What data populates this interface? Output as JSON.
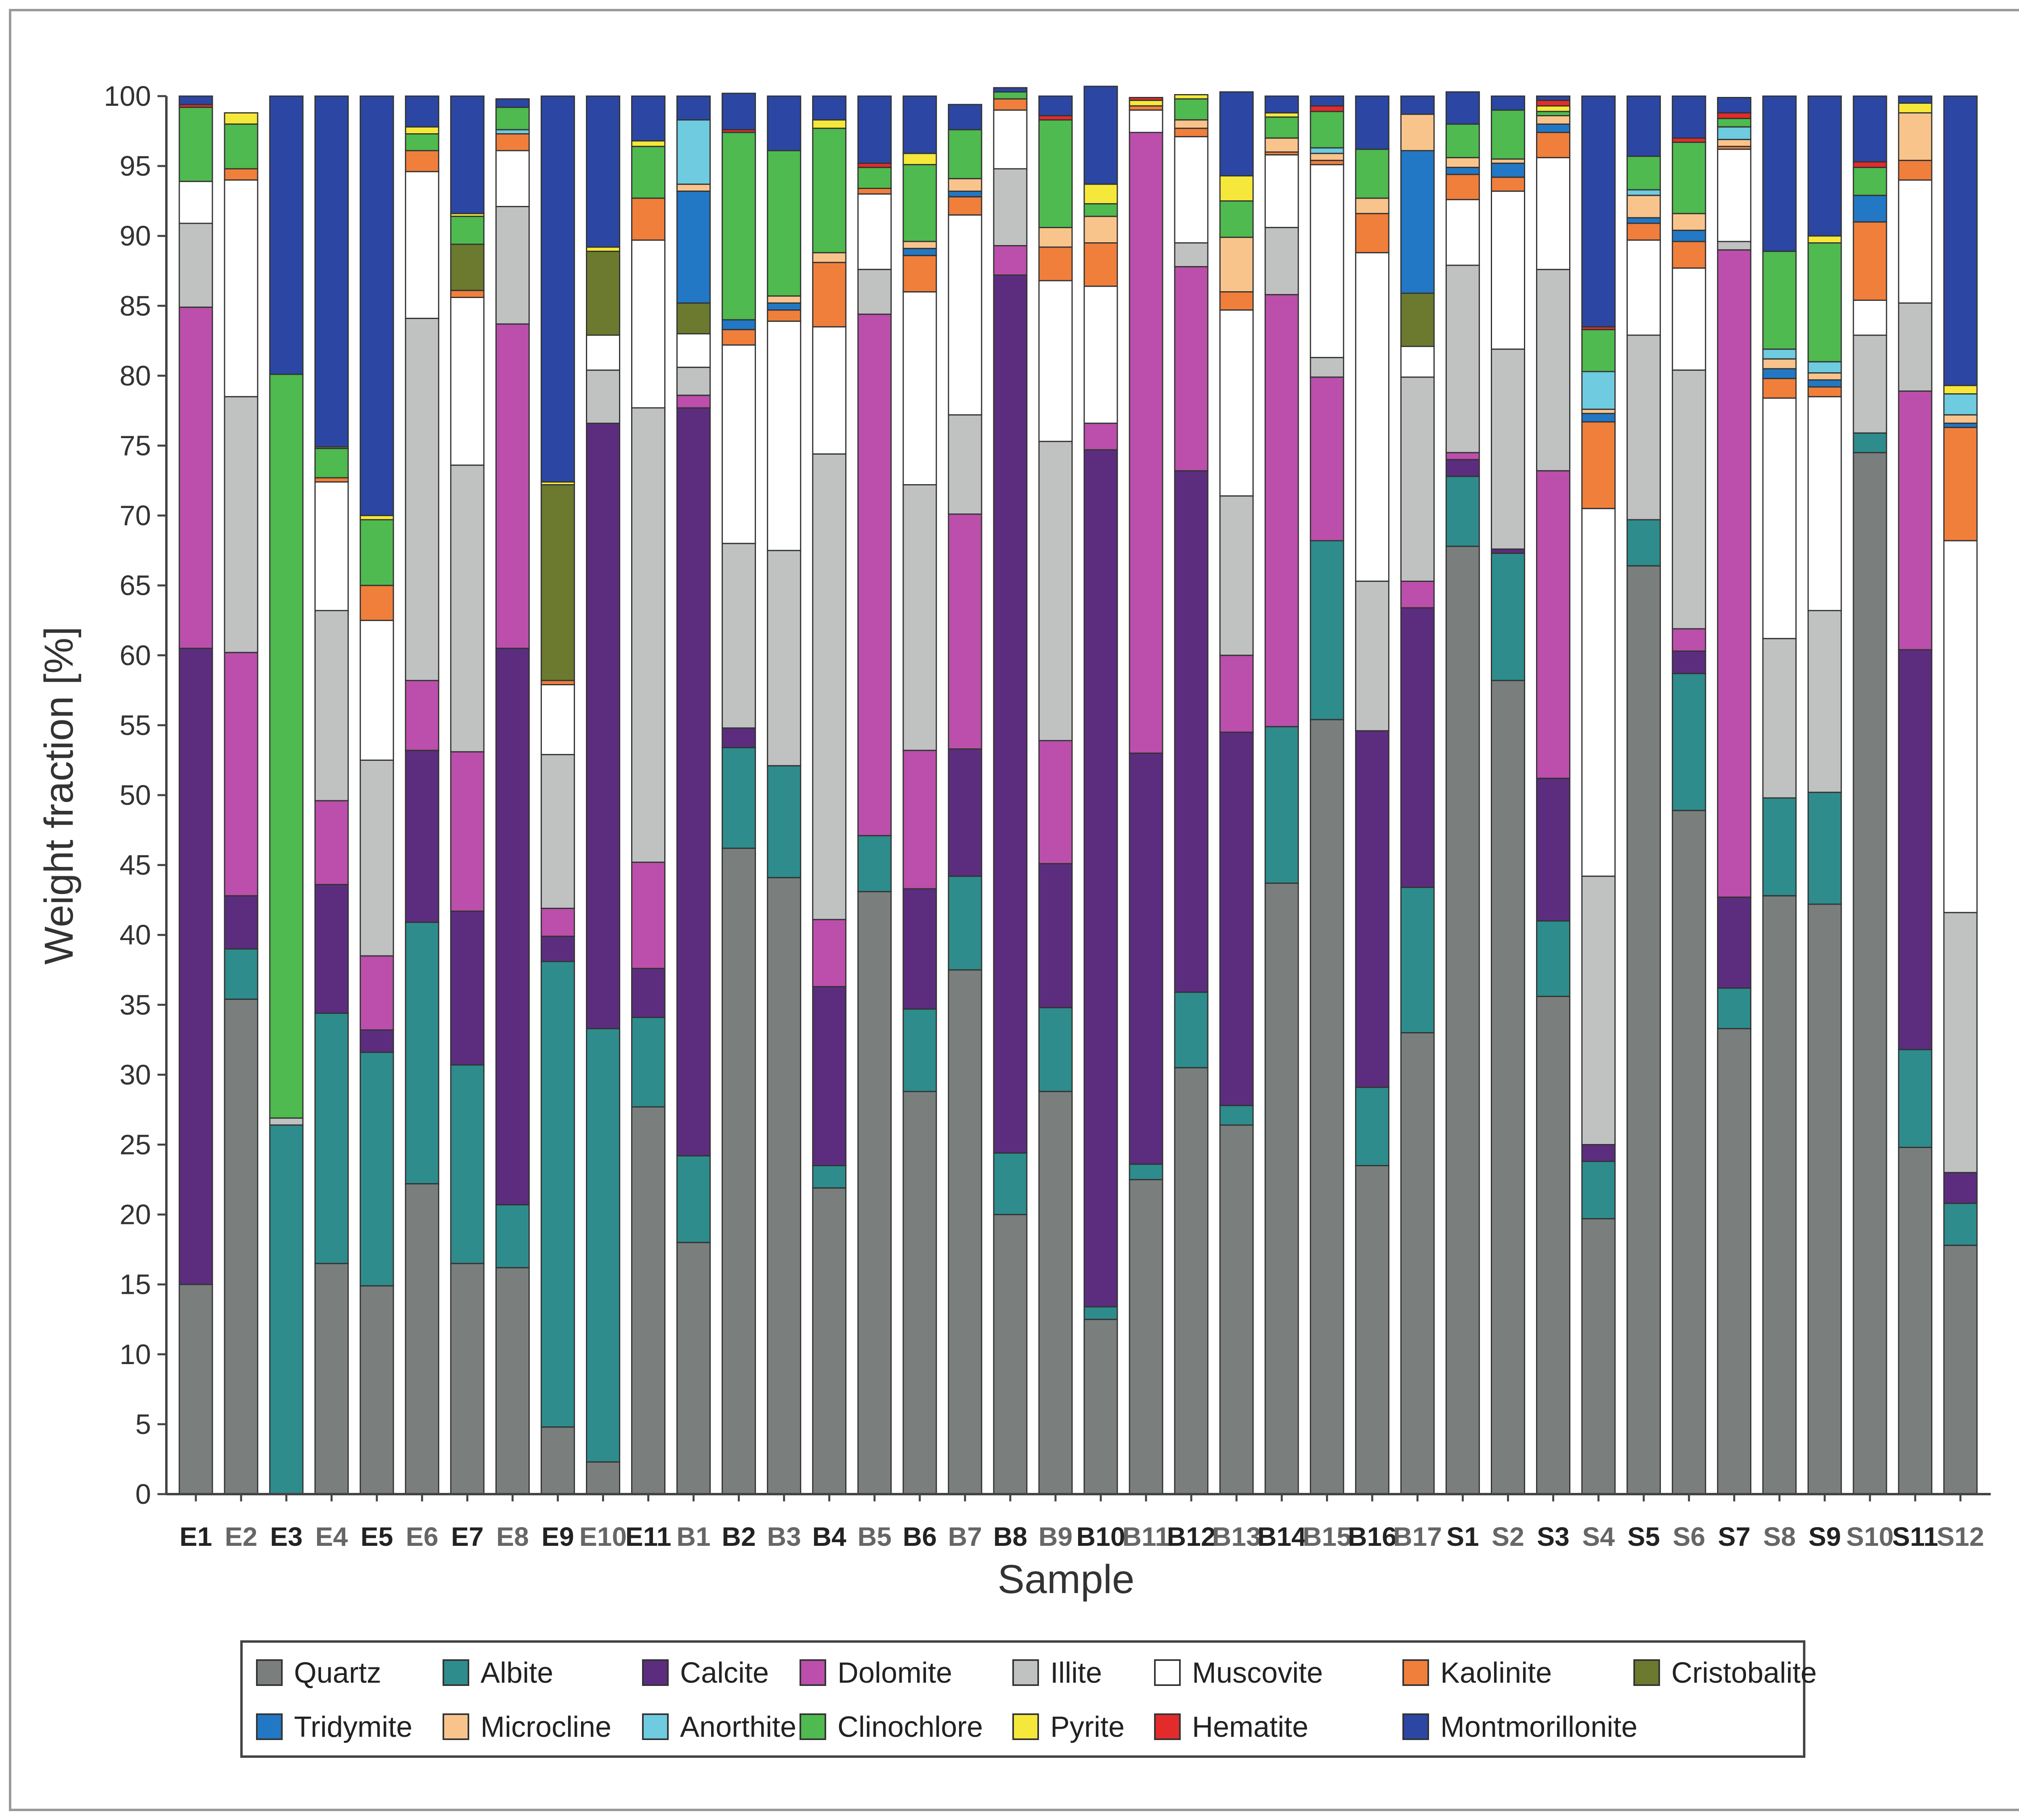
{
  "chart_data": {
    "type": "bar",
    "stacked": true,
    "title": "",
    "xlabel": "Sample",
    "ylabel": "Weight fraction [%]",
    "ylim": [
      0,
      100
    ],
    "yticks": [
      0,
      5,
      10,
      15,
      20,
      25,
      30,
      35,
      40,
      45,
      50,
      55,
      60,
      65,
      70,
      75,
      80,
      85,
      90,
      95,
      100
    ],
    "grid": false,
    "legend_position": "bottom",
    "categories": [
      "E1",
      "E2",
      "E3",
      "E4",
      "E5",
      "E6",
      "E7",
      "E8",
      "E9",
      "E10",
      "E11",
      "B1",
      "B2",
      "B3",
      "B4",
      "B5",
      "B6",
      "B7",
      "B8",
      "B9",
      "B10",
      "B11",
      "B12",
      "B13",
      "B14",
      "B15",
      "B16",
      "B17",
      "S1",
      "S2",
      "S3",
      "S4",
      "S5",
      "S6",
      "S7",
      "S8",
      "S9",
      "S10",
      "S11",
      "S12"
    ],
    "label_colors": [
      "#222222",
      "#666666",
      "#222222",
      "#666666",
      "#222222",
      "#666666",
      "#222222",
      "#666666",
      "#222222",
      "#666666",
      "#222222",
      "#666666",
      "#222222",
      "#666666",
      "#222222",
      "#666666",
      "#222222",
      "#666666",
      "#222222",
      "#666666",
      "#222222",
      "#666666",
      "#222222",
      "#666666",
      "#222222",
      "#666666",
      "#222222",
      "#666666",
      "#222222",
      "#666666",
      "#222222",
      "#666666",
      "#222222",
      "#666666",
      "#222222",
      "#666666",
      "#222222",
      "#666666",
      "#222222",
      "#666666"
    ],
    "series": [
      {
        "name": "Quartz",
        "color": "#7a7f7e",
        "values": [
          15,
          35.4,
          0,
          16.5,
          14.9,
          22.2,
          16.5,
          16.2,
          4.8,
          2.3,
          27.7,
          18,
          46.2,
          44.1,
          21.9,
          43.1,
          28.8,
          37.5,
          20,
          28.8,
          12.5,
          22.5,
          30.5,
          26.4,
          43.7,
          55.4,
          23.5,
          33,
          67.8,
          58.2,
          35.6,
          19.7,
          66.4,
          48.9,
          33.3,
          42.8,
          42.2,
          74.5,
          24.8,
          17.8
        ]
      },
      {
        "name": "Albite",
        "color": "#2e8c8c",
        "values": [
          0,
          3.6,
          26.4,
          17.9,
          16.7,
          18.7,
          14.2,
          4.5,
          33.3,
          31,
          6.4,
          6.2,
          7.2,
          8,
          1.6,
          4,
          5.9,
          6.7,
          4.4,
          6,
          0.9,
          1.1,
          5.4,
          1.4,
          11.2,
          12.8,
          5.6,
          10.4,
          5,
          9.1,
          5.4,
          4.1,
          3.3,
          9.8,
          2.9,
          7,
          8,
          1.4,
          7,
          3
        ]
      },
      {
        "name": "Calcite",
        "color": "#5c2d7e",
        "values": [
          45.5,
          3.8,
          0,
          9.2,
          1.6,
          12.3,
          11,
          39.8,
          1.8,
          43.3,
          3.5,
          53.5,
          1.4,
          0,
          12.8,
          0,
          8.6,
          9.1,
          62.8,
          10.3,
          61.3,
          29.4,
          37.3,
          26.7,
          0,
          0,
          25.5,
          20,
          1.2,
          0.3,
          10.2,
          1.2,
          0,
          1.6,
          6.5,
          0,
          0,
          0,
          28.6,
          2.2
        ]
      },
      {
        "name": "Dolomite",
        "color": "#bb4fab",
        "values": [
          24.4,
          17.4,
          0,
          6,
          5.3,
          5,
          11.4,
          23.2,
          2,
          0,
          7.6,
          0.9,
          0,
          0,
          4.8,
          37.3,
          9.9,
          16.8,
          2.1,
          8.8,
          1.9,
          44.4,
          14.6,
          5.5,
          30.9,
          11.7,
          0,
          1.9,
          0.5,
          0,
          22,
          0,
          0,
          1.6,
          46.3,
          0,
          0,
          0,
          18.5,
          0
        ]
      },
      {
        "name": "Illite",
        "color": "#c0c2c2",
        "values": [
          6,
          18.3,
          0.5,
          13.6,
          14,
          25.9,
          20.5,
          8.4,
          11,
          3.8,
          32.5,
          2,
          13.2,
          15.4,
          33.3,
          3.2,
          19,
          7.1,
          5.5,
          21.4,
          0,
          0,
          1.7,
          11.4,
          4.8,
          1.4,
          10.7,
          14.6,
          13.4,
          14.3,
          14.4,
          19.2,
          13.2,
          18.5,
          0.6,
          11.4,
          13,
          7,
          6.3,
          18.6
        ]
      },
      {
        "name": "Muscovite",
        "color": "#ffffff",
        "values": [
          3,
          15.5,
          0,
          9.2,
          10,
          10.5,
          12,
          4,
          5,
          2.5,
          12,
          2.4,
          14.2,
          16.4,
          9.1,
          5.4,
          13.8,
          14.3,
          4.2,
          11.5,
          9.8,
          1.6,
          7.6,
          13.3,
          5.2,
          13.8,
          23.5,
          2.2,
          4.7,
          11.3,
          8,
          26.3,
          6.8,
          7.3,
          6.6,
          17.2,
          15.3,
          2.5,
          8.8,
          26.6
        ]
      },
      {
        "name": "Kaolinite",
        "color": "#f07f3c",
        "values": [
          0,
          0.8,
          0,
          0.3,
          2.5,
          1.5,
          0.5,
          1.2,
          0.3,
          0,
          3,
          0,
          1.1,
          0.8,
          4.6,
          0.4,
          2.6,
          1.3,
          0.8,
          2.4,
          3.1,
          0.3,
          0.6,
          1.3,
          0.2,
          0.3,
          2.8,
          0,
          1.8,
          1,
          1.8,
          6.2,
          1.2,
          1.9,
          0.2,
          1.4,
          0.7,
          5.6,
          1.4,
          8.1
        ]
      },
      {
        "name": "Cristobalite",
        "color": "#6b7a2e",
        "values": [
          0,
          0,
          0,
          0,
          0,
          0,
          3.3,
          0,
          14,
          6,
          0,
          2.2,
          0,
          0,
          0,
          0,
          0,
          0,
          0,
          0,
          0,
          0,
          0,
          0,
          0,
          0,
          0,
          3.8,
          0,
          0,
          0,
          0,
          0,
          0,
          0,
          0,
          0,
          0,
          0,
          0
        ]
      },
      {
        "name": "Tridymite",
        "color": "#2278c4",
        "values": [
          0,
          0,
          0,
          0,
          0,
          0,
          0,
          0,
          0,
          0,
          0,
          8,
          0.7,
          0.5,
          0,
          0,
          0.5,
          0.4,
          0,
          0,
          0,
          0,
          0,
          0,
          0,
          0,
          0,
          10.2,
          0.5,
          1,
          0.6,
          0.6,
          0.4,
          0.8,
          0,
          0.7,
          0.5,
          1.9,
          0,
          0.3
        ]
      },
      {
        "name": "Microcline",
        "color": "#f9c48c",
        "values": [
          0,
          0,
          0,
          0,
          0,
          0,
          0,
          0,
          0,
          0,
          0,
          0.5,
          0,
          0.5,
          0.7,
          0,
          0.5,
          0.9,
          0,
          1.4,
          1.9,
          0,
          0.6,
          3.9,
          1,
          0.5,
          1.1,
          2.6,
          0.7,
          0.3,
          0.6,
          0.3,
          1.6,
          1.2,
          0.5,
          0.7,
          0.5,
          0,
          3.4,
          0.6
        ]
      },
      {
        "name": "Anorthite",
        "color": "#6fcbe0",
        "values": [
          0,
          0,
          0,
          0,
          0,
          0,
          0,
          0.3,
          0,
          0,
          0,
          4.6,
          0,
          0,
          0,
          0,
          0,
          0,
          0,
          0,
          0,
          0,
          0,
          0,
          0,
          0.4,
          0,
          0,
          0,
          0,
          0,
          2.7,
          0.4,
          0,
          0.9,
          0.7,
          0.8,
          0,
          0,
          1.5
        ]
      },
      {
        "name": "Clinochlore",
        "color": "#4fba4f",
        "values": [
          5.3,
          3.2,
          53.2,
          2.1,
          4.7,
          1.2,
          2,
          1.6,
          0,
          0,
          3.7,
          0,
          13.4,
          10.4,
          8.9,
          1.5,
          5.5,
          3.5,
          0.5,
          7.7,
          0.9,
          0,
          1.5,
          2.6,
          1.5,
          2.6,
          3.5,
          0,
          2.4,
          3.5,
          0.3,
          3,
          2.4,
          5.1,
          0.6,
          7,
          8.5,
          2,
          0,
          0
        ]
      },
      {
        "name": "Pyrite",
        "color": "#f6e83a",
        "values": [
          0,
          0.8,
          0,
          0.1,
          0.3,
          0.5,
          0.2,
          0,
          0.2,
          0.3,
          0.4,
          0,
          0,
          0,
          0.6,
          0,
          0.8,
          0,
          0,
          0,
          1.4,
          0.4,
          0.3,
          1.8,
          0.3,
          0,
          0,
          0,
          0,
          0,
          0.4,
          0,
          0,
          0,
          0,
          0,
          0.5,
          0,
          0.7,
          0.6
        ]
      },
      {
        "name": "Hematite",
        "color": "#e42b2b",
        "values": [
          0.2,
          0,
          0,
          0,
          0,
          0,
          0,
          0,
          0,
          0,
          0,
          0,
          0.2,
          0,
          0,
          0.3,
          0,
          0,
          0,
          0.3,
          0,
          0.2,
          0,
          0,
          0,
          0.4,
          0,
          0,
          0,
          0,
          0.4,
          0.2,
          0,
          0.3,
          0.4,
          0,
          0,
          0.4,
          0,
          0
        ]
      },
      {
        "name": "Montmorillonite",
        "color": "#2b47a3",
        "values": [
          0.6,
          0,
          19.9,
          25.1,
          30,
          2.2,
          8.4,
          0.6,
          27.6,
          10.8,
          3.2,
          1.7,
          2.6,
          3.9,
          1.7,
          4.8,
          4.1,
          1.8,
          0.3,
          1.4,
          7,
          0,
          0,
          6,
          1.2,
          0.7,
          3.8,
          1.3,
          2.3,
          1,
          0.3,
          16.5,
          4.3,
          3,
          1.1,
          11.1,
          10,
          4.7,
          0.5,
          20.7
        ]
      }
    ]
  }
}
